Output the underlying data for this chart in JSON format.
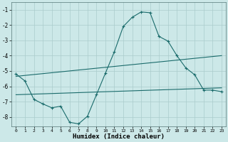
{
  "xlabel": "Humidex (Indice chaleur)",
  "bg_color": "#cce8e8",
  "grid_color": "#aacccc",
  "line_color": "#1a6b6b",
  "xlim": [
    -0.5,
    23.5
  ],
  "ylim": [
    -8.6,
    -0.5
  ],
  "yticks": [
    -8,
    -7,
    -6,
    -5,
    -4,
    -3,
    -2,
    -1
  ],
  "xticks": [
    0,
    1,
    2,
    3,
    4,
    5,
    6,
    7,
    8,
    9,
    10,
    11,
    12,
    13,
    14,
    15,
    16,
    17,
    18,
    19,
    20,
    21,
    22,
    23
  ],
  "line1_x": [
    0,
    1,
    2,
    3,
    4,
    5,
    6,
    7,
    8,
    9,
    10,
    11,
    12,
    13,
    14,
    15,
    16,
    17,
    18,
    19,
    20,
    21,
    22,
    23
  ],
  "line1_y": [
    -5.2,
    -5.65,
    -6.85,
    -7.15,
    -7.4,
    -7.3,
    -8.35,
    -8.45,
    -7.95,
    -6.55,
    -5.15,
    -3.75,
    -2.1,
    -1.5,
    -1.15,
    -1.2,
    -2.75,
    -3.05,
    -4.0,
    -4.8,
    -5.25,
    -6.25,
    -6.25,
    -6.35
  ],
  "line2_x": [
    0,
    23
  ],
  "line2_y": [
    -5.35,
    -4.0
  ],
  "line3_x": [
    0,
    23
  ],
  "line3_y": [
    -6.55,
    -6.1
  ]
}
